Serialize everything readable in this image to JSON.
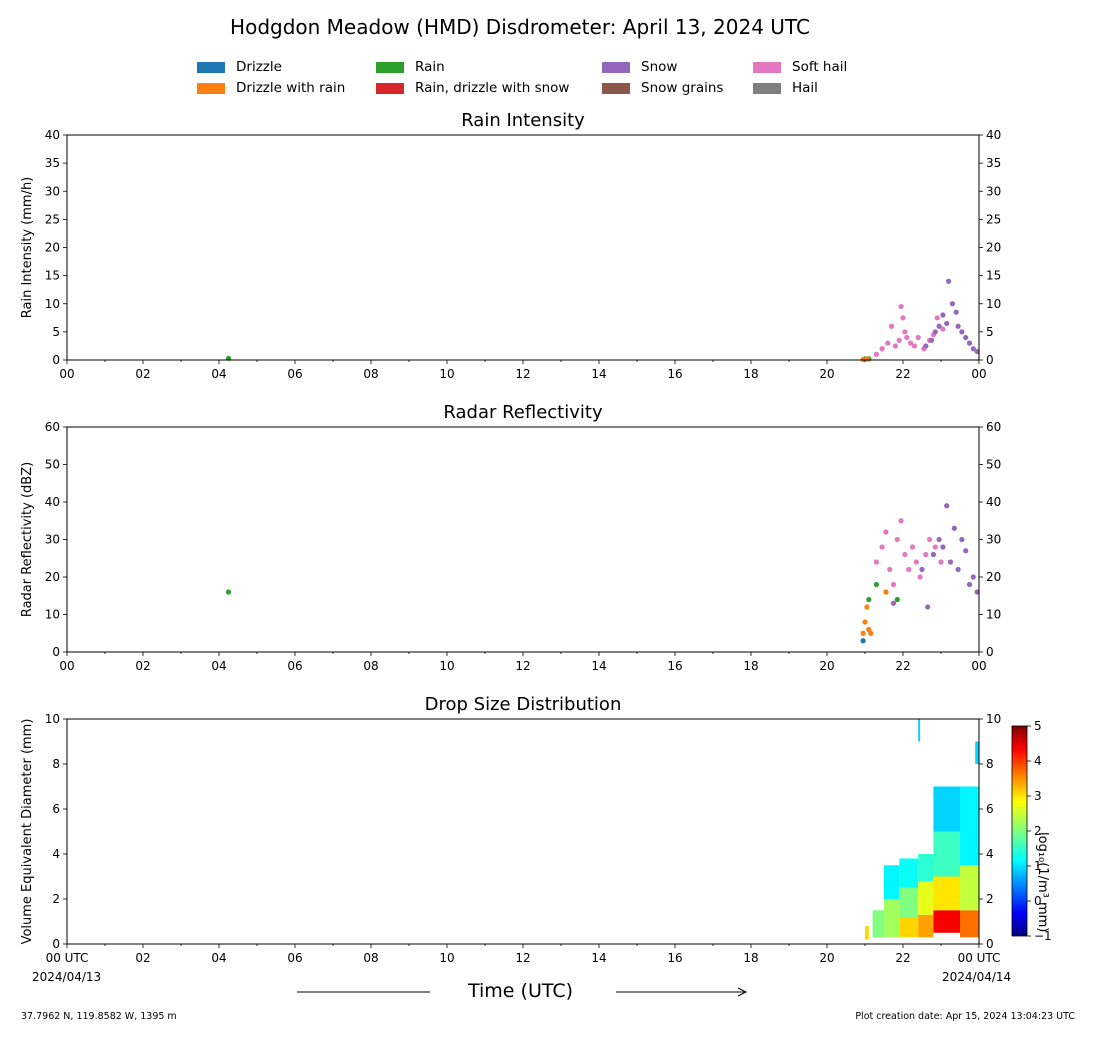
{
  "header": {
    "title": "Hodgdon Meadow (HMD) Disdrometer: April 13, 2024 UTC"
  },
  "legend": {
    "items": [
      {
        "label": "Drizzle",
        "color": "#1f77b4"
      },
      {
        "label": "Drizzle with rain",
        "color": "#ff7f0e"
      },
      {
        "label": "Rain",
        "color": "#2ca02c"
      },
      {
        "label": "Rain, drizzle with snow",
        "color": "#d62728"
      },
      {
        "label": "Snow",
        "color": "#9467bd"
      },
      {
        "label": "Snow grains",
        "color": "#8c564b"
      },
      {
        "label": "Soft hail",
        "color": "#e377c2"
      },
      {
        "label": "Hail",
        "color": "#7f7f7f"
      }
    ]
  },
  "footer": {
    "xlabel": "Time (UTC)",
    "coords": "37.7962 N, 119.8582 W, 1395 m",
    "created": "Plot creation date: Apr 15, 2024 13:04:23 UTC",
    "date_start": "2024/04/13",
    "date_end": "2024/04/14"
  },
  "colorbar": {
    "label": "log₁₀(1/m³ mm)",
    "ticks": [
      "5",
      "4",
      "3",
      "2",
      "1",
      "0",
      "−1"
    ],
    "range": [
      -1,
      5
    ]
  },
  "chart_data": [
    {
      "type": "scatter",
      "title": "Rain Intensity",
      "ylabel": "Rain Intensity (mm/h)",
      "xlabel": "",
      "x_unit": "hour UTC",
      "xlim": [
        0,
        24
      ],
      "ylim": [
        0,
        40
      ],
      "xticks": [
        "00",
        "02",
        "04",
        "06",
        "08",
        "10",
        "12",
        "14",
        "16",
        "18",
        "20",
        "22",
        "00"
      ],
      "yticks": [
        "0",
        "5",
        "10",
        "15",
        "20",
        "25",
        "30",
        "35",
        "40"
      ],
      "grid": false,
      "series": [
        {
          "name": "Rain",
          "color": "#2ca02c",
          "x": [
            4.25,
            21.0,
            21.1
          ],
          "y": [
            0.3,
            0.2,
            0.2
          ]
        },
        {
          "name": "Drizzle with rain",
          "color": "#ff7f0e",
          "x": [
            20.95,
            21.05
          ],
          "y": [
            0.1,
            0.2
          ]
        },
        {
          "name": "Soft hail",
          "color": "#e377c2",
          "x": [
            21.3,
            21.45,
            21.6,
            21.7,
            21.8,
            21.9,
            21.95,
            22.0,
            22.05,
            22.1,
            22.2,
            22.3,
            22.4,
            22.55,
            22.7,
            22.8,
            22.9,
            23.05
          ],
          "y": [
            1.0,
            2.0,
            3.0,
            6.0,
            2.5,
            3.5,
            9.5,
            7.5,
            5.0,
            4.0,
            3.0,
            2.5,
            4.0,
            2.0,
            3.5,
            4.5,
            7.5,
            5.5
          ]
        },
        {
          "name": "Snow",
          "color": "#9467bd",
          "x": [
            22.6,
            22.75,
            22.85,
            22.95,
            23.05,
            23.15,
            23.2,
            23.3,
            23.4,
            23.45,
            23.55,
            23.65,
            23.75,
            23.85,
            23.95
          ],
          "y": [
            2.5,
            3.5,
            5.0,
            6.0,
            8.0,
            6.5,
            14.0,
            10.0,
            8.5,
            6.0,
            5.0,
            4.0,
            3.0,
            2.0,
            1.5
          ]
        }
      ]
    },
    {
      "type": "scatter",
      "title": "Radar Reflectivity",
      "ylabel": "Radar Reflectivity (dBZ)",
      "xlabel": "",
      "x_unit": "hour UTC",
      "xlim": [
        0,
        24
      ],
      "ylim": [
        0,
        60
      ],
      "xticks": [
        "00",
        "02",
        "04",
        "06",
        "08",
        "10",
        "12",
        "14",
        "16",
        "18",
        "20",
        "22",
        "00"
      ],
      "yticks": [
        "0",
        "10",
        "20",
        "30",
        "40",
        "50",
        "60"
      ],
      "grid": false,
      "series": [
        {
          "name": "Rain",
          "color": "#2ca02c",
          "x": [
            4.25,
            21.1,
            21.3,
            21.55,
            21.85
          ],
          "y": [
            16,
            14,
            18,
            16,
            14
          ]
        },
        {
          "name": "Drizzle",
          "color": "#1f77b4",
          "x": [
            20.95
          ],
          "y": [
            3
          ]
        },
        {
          "name": "Drizzle with rain",
          "color": "#ff7f0e",
          "x": [
            20.95,
            21.0,
            21.05,
            21.1,
            21.15,
            21.55
          ],
          "y": [
            5,
            8,
            12,
            6,
            5,
            16
          ]
        },
        {
          "name": "Soft hail",
          "color": "#e377c2",
          "x": [
            21.3,
            21.45,
            21.55,
            21.65,
            21.75,
            21.85,
            21.95,
            22.05,
            22.15,
            22.25,
            22.35,
            22.45,
            22.6,
            22.7,
            22.85,
            23.0
          ],
          "y": [
            24,
            28,
            32,
            22,
            18,
            30,
            35,
            26,
            22,
            28,
            24,
            20,
            26,
            30,
            28,
            24
          ]
        },
        {
          "name": "Snow",
          "color": "#9467bd",
          "x": [
            21.75,
            22.5,
            22.65,
            22.8,
            22.95,
            23.05,
            23.15,
            23.25,
            23.35,
            23.45,
            23.55,
            23.65,
            23.75,
            23.85,
            23.95
          ],
          "y": [
            13,
            22,
            12,
            26,
            30,
            28,
            39,
            24,
            33,
            22,
            30,
            27,
            18,
            20,
            16
          ]
        }
      ]
    },
    {
      "type": "heatmap",
      "title": "Drop Size Distribution",
      "ylabel": "Volume Equivalent Diameter (mm)",
      "xlabel": "",
      "x_unit": "hour UTC",
      "xlim": [
        0,
        24
      ],
      "ylim": [
        0,
        10
      ],
      "xticks": [
        "00 UTC",
        "02",
        "04",
        "06",
        "08",
        "10",
        "12",
        "14",
        "16",
        "18",
        "20",
        "22",
        "00 UTC"
      ],
      "yticks": [
        "0",
        "2",
        "4",
        "6",
        "8",
        "10"
      ],
      "grid": false,
      "color_scale": "jet",
      "color_range": [
        -1,
        5
      ],
      "cells": [
        {
          "x0": 21.0,
          "x1": 21.1,
          "y0": 0.2,
          "y1": 0.8,
          "v": 3.0
        },
        {
          "x0": 21.2,
          "x1": 21.5,
          "y0": 0.3,
          "y1": 1.5,
          "v": 2.0
        },
        {
          "x0": 21.5,
          "x1": 21.9,
          "y0": 0.3,
          "y1": 2.0,
          "v": 2.2
        },
        {
          "x0": 21.5,
          "x1": 21.9,
          "y0": 2.0,
          "y1": 3.5,
          "v": 1.2
        },
        {
          "x0": 21.9,
          "x1": 22.4,
          "y0": 0.3,
          "y1": 1.2,
          "v": 3.0
        },
        {
          "x0": 21.9,
          "x1": 22.4,
          "y0": 1.2,
          "y1": 2.5,
          "v": 2.0
        },
        {
          "x0": 21.9,
          "x1": 22.4,
          "y0": 2.5,
          "y1": 3.8,
          "v": 1.3
        },
        {
          "x0": 22.4,
          "x1": 22.8,
          "y0": 0.3,
          "y1": 1.3,
          "v": 3.3
        },
        {
          "x0": 22.4,
          "x1": 22.8,
          "y0": 1.3,
          "y1": 2.8,
          "v": 2.6
        },
        {
          "x0": 22.4,
          "x1": 22.8,
          "y0": 2.8,
          "y1": 4.0,
          "v": 1.5
        },
        {
          "x0": 22.8,
          "x1": 23.5,
          "y0": 0.5,
          "y1": 1.5,
          "v": 4.3
        },
        {
          "x0": 22.8,
          "x1": 23.5,
          "y0": 1.5,
          "y1": 3.0,
          "v": 2.9
        },
        {
          "x0": 22.8,
          "x1": 23.5,
          "y0": 3.0,
          "y1": 5.0,
          "v": 1.6
        },
        {
          "x0": 22.8,
          "x1": 23.5,
          "y0": 5.0,
          "y1": 7.0,
          "v": 1.0
        },
        {
          "x0": 23.5,
          "x1": 24.0,
          "y0": 0.3,
          "y1": 1.5,
          "v": 3.6
        },
        {
          "x0": 23.5,
          "x1": 24.0,
          "y0": 1.5,
          "y1": 3.5,
          "v": 2.4
        },
        {
          "x0": 23.5,
          "x1": 24.0,
          "y0": 3.5,
          "y1": 7.0,
          "v": 1.2
        },
        {
          "x0": 22.4,
          "x1": 22.45,
          "y0": 9.0,
          "y1": 10.0,
          "v": 1.0
        },
        {
          "x0": 23.9,
          "x1": 24.0,
          "y0": 8.0,
          "y1": 9.0,
          "v": 1.0
        }
      ]
    }
  ]
}
